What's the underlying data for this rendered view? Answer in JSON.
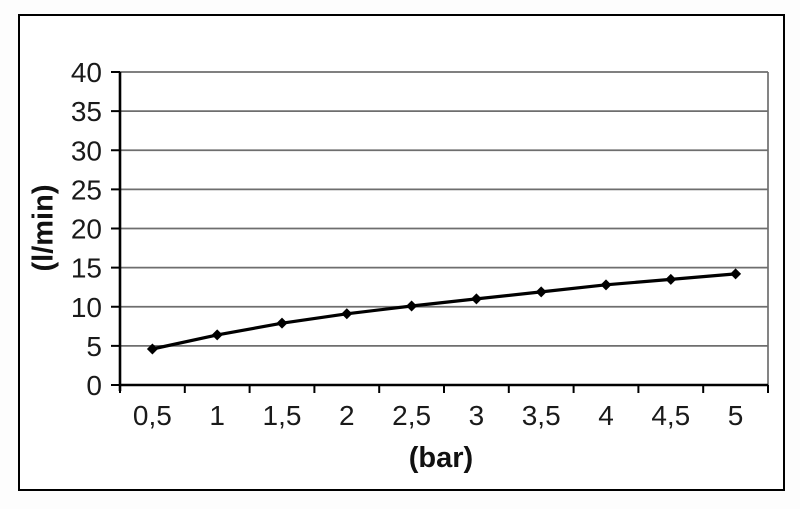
{
  "page": {
    "background_color": "#ffffff",
    "frame_color": "#000000"
  },
  "chart_data": {
    "type": "line",
    "title": "",
    "xlabel": "(bar)",
    "ylabel": "(l/min)",
    "categories": [
      "0,5",
      "1",
      "1,5",
      "2",
      "2,5",
      "3",
      "3,5",
      "4",
      "4,5",
      "5"
    ],
    "values": [
      4.6,
      6.4,
      7.9,
      9.1,
      10.1,
      11.0,
      11.9,
      12.8,
      13.5,
      14.2
    ],
    "ylim": [
      0,
      40
    ],
    "ytick_step": 5,
    "ytick_labels": [
      "0",
      "5",
      "10",
      "15",
      "20",
      "25",
      "30",
      "35",
      "40"
    ],
    "grid": true,
    "legend": false,
    "marker": "diamond",
    "series_color": "#000000",
    "grid_color": "#6e6e6e",
    "axis_color": "#000000",
    "tick_label_color": "#1a1a1a"
  }
}
